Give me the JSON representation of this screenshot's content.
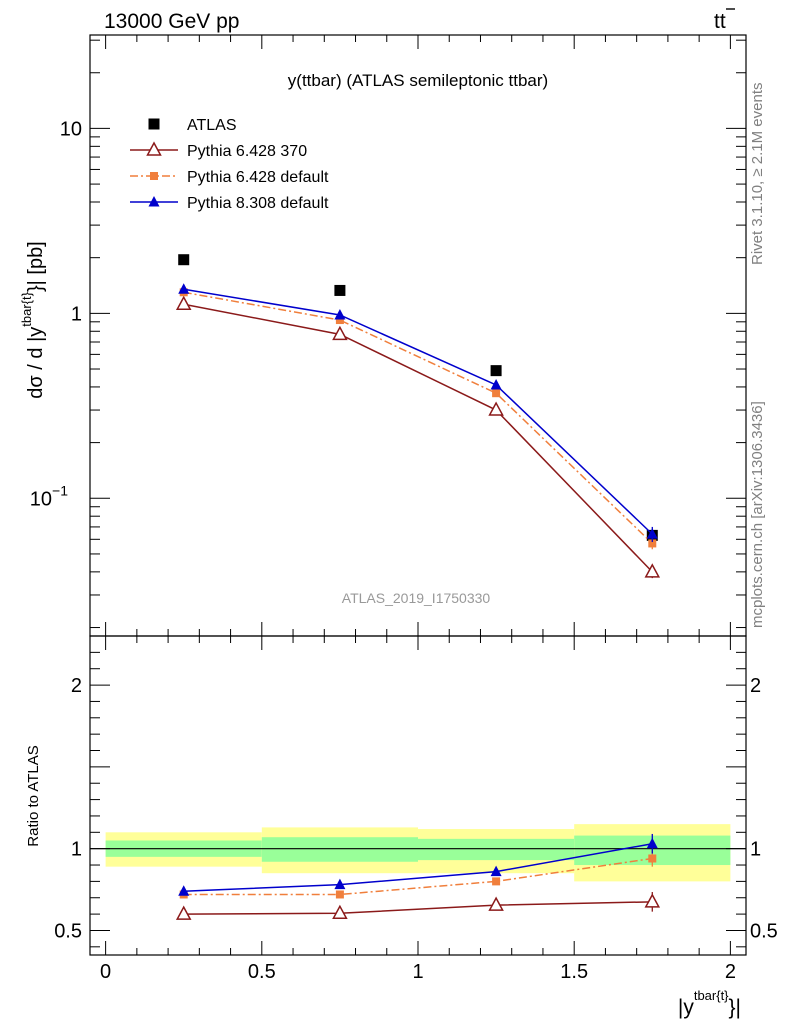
{
  "header": {
    "left": "13000 GeV pp",
    "right_base": "t",
    "right_bar": "t"
  },
  "side_labels": {
    "rivet": "Rivet 3.1.10, ≥ 2.1M events",
    "mcplots": "mcplots.cern.ch [arXiv:1306.3436]"
  },
  "watermark": "ATLAS_2019_I1750330",
  "chart_data": [
    {
      "type": "scatter",
      "title": "y(ttbar) (ATLAS semileptonic ttbar)",
      "ylabel": {
        "prefix": "dσ / d |y",
        "sup": "tbar{t}",
        "suffix": "}| [pb]"
      },
      "yscale": "log",
      "ylim": [
        0.018,
        32
      ],
      "xlim": [
        -0.05,
        2.05
      ],
      "yticks": [
        {
          "value": 10,
          "label": "10",
          "sup": ""
        },
        {
          "value": 1,
          "label": "1",
          "sup": ""
        },
        {
          "value": 0.1,
          "label": "10",
          "sup": "−1"
        }
      ],
      "legend_placement": "top-left",
      "x": [
        0.25,
        0.75,
        1.25,
        1.75
      ],
      "series": [
        {
          "name": "ATLAS",
          "values": [
            1.95,
            1.33,
            0.49,
            0.063
          ],
          "yerr": [
            0.03,
            0.02,
            0.008,
            0.002
          ],
          "color": "#000000",
          "marker": "filled-square",
          "line": "none"
        },
        {
          "name": "Pythia 6.428 370",
          "values": [
            1.12,
            0.77,
            0.3,
            0.04
          ],
          "yerr": [
            0.02,
            0.015,
            0.008,
            0.003
          ],
          "color": "#8b1a1a",
          "marker": "open-triangle",
          "line": "solid"
        },
        {
          "name": "Pythia 6.428 default",
          "values": [
            1.3,
            0.92,
            0.37,
            0.057
          ],
          "yerr": [
            0.02,
            0.015,
            0.008,
            0.004
          ],
          "color": "#f07f3c",
          "marker": "filled-square-small",
          "line": "dashdot"
        },
        {
          "name": "Pythia 8.308 default",
          "values": [
            1.35,
            0.98,
            0.41,
            0.064
          ],
          "yerr": [
            0.02,
            0.015,
            0.008,
            0.006
          ],
          "color": "#0000cc",
          "marker": "filled-triangle",
          "line": "solid"
        }
      ]
    },
    {
      "type": "scatter",
      "ylabel": "Ratio to ATLAS",
      "xlabel": {
        "prefix": "|y",
        "sup": "tbar{t}",
        "suffix": "}|"
      },
      "ylim": [
        0.35,
        2.3
      ],
      "xlim": [
        -0.05,
        2.05
      ],
      "xticks": [
        {
          "value": 0,
          "label": "0"
        },
        {
          "value": 0.5,
          "label": "0.5"
        },
        {
          "value": 1,
          "label": "1"
        },
        {
          "value": 1.5,
          "label": "1.5"
        },
        {
          "value": 2,
          "label": "2"
        }
      ],
      "yticks": [
        {
          "value": 0.5,
          "label": "0.5"
        },
        {
          "value": 1,
          "label": "1"
        },
        {
          "value": 2,
          "label": "2"
        }
      ],
      "reference_line": 1,
      "bands": [
        {
          "x0": 0,
          "x1": 0.5,
          "inner": [
            0.95,
            1.05
          ],
          "outer": [
            0.89,
            1.1
          ]
        },
        {
          "x0": 0.5,
          "x1": 1,
          "inner": [
            0.92,
            1.07
          ],
          "outer": [
            0.85,
            1.13
          ]
        },
        {
          "x0": 1,
          "x1": 1.5,
          "inner": [
            0.93,
            1.06
          ],
          "outer": [
            0.85,
            1.12
          ]
        },
        {
          "x0": 1.5,
          "x1": 2,
          "inner": [
            0.9,
            1.08
          ],
          "outer": [
            0.8,
            1.15
          ]
        }
      ],
      "band_colors": {
        "inner": "#99ff99",
        "outer": "#ffff99"
      },
      "x": [
        0.25,
        0.75,
        1.25,
        1.75
      ],
      "series": [
        {
          "name": "Pythia 6.428 370",
          "values": [
            0.6,
            0.605,
            0.655,
            0.675
          ],
          "yerr": [
            0.005,
            0.008,
            0.012,
            0.06
          ],
          "color": "#8b1a1a",
          "marker": "open-triangle",
          "line": "solid"
        },
        {
          "name": "Pythia 6.428 default",
          "values": [
            0.72,
            0.72,
            0.8,
            0.94
          ],
          "yerr": [
            0.006,
            0.008,
            0.015,
            0.05
          ],
          "color": "#f07f3c",
          "marker": "filled-square-small",
          "line": "dashdot"
        },
        {
          "name": "Pythia 8.308 default",
          "values": [
            0.74,
            0.78,
            0.86,
            1.03
          ],
          "yerr": [
            0.006,
            0.008,
            0.02,
            0.06
          ],
          "color": "#0000cc",
          "marker": "filled-triangle",
          "line": "solid"
        }
      ]
    }
  ]
}
